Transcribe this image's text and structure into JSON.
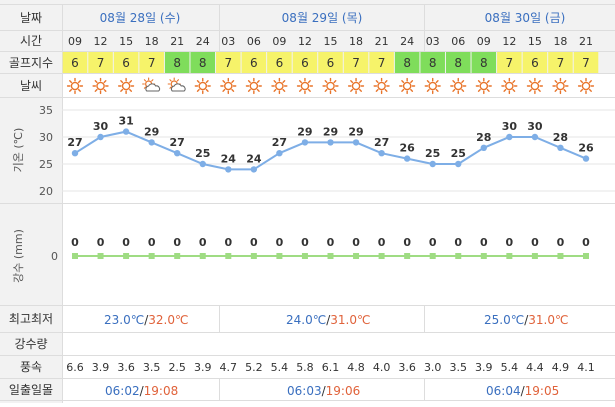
{
  "row_labels": {
    "date": "날짜",
    "time": "시간",
    "golf_index": "골프지수",
    "weather": "날씨",
    "temp_axis": "기온 (℃)",
    "rain_axis": "강수 (mm)",
    "minmax": "최고최저",
    "precip": "강수량",
    "wind": "풍속",
    "sun": "일출일몰"
  },
  "days": [
    {
      "label": "08월 28일 (수)",
      "min": "23.0℃",
      "max": "32.0℃",
      "sunrise": "06:02",
      "sunset": "19:08"
    },
    {
      "label": "08월 29일 (목)",
      "min": "24.0℃",
      "max": "31.0℃",
      "sunrise": "06:03",
      "sunset": "19:06"
    },
    {
      "label": "08월 30일 (금)",
      "min": "25.0℃",
      "max": "31.0℃",
      "sunrise": "06:04",
      "sunset": "19:05"
    }
  ],
  "separators": {
    "minmax": "/",
    "sun": "/"
  },
  "hours": [
    "09",
    "12",
    "15",
    "18",
    "21",
    "24",
    "03",
    "06",
    "09",
    "12",
    "15",
    "18",
    "21",
    "24",
    "03",
    "06",
    "09",
    "12",
    "15",
    "18",
    "21"
  ],
  "golf_index": [
    "6",
    "7",
    "6",
    "7",
    "8",
    "8",
    "7",
    "6",
    "6",
    "6",
    "6",
    "7",
    "7",
    "8",
    "8",
    "8",
    "8",
    "7",
    "6",
    "7",
    "7"
  ],
  "weather_icons": [
    "sun-icon",
    "sun-icon",
    "sun-icon",
    "partly-cloudy-icon",
    "partly-cloudy-icon",
    "sun-icon",
    "sun-icon",
    "sun-icon",
    "sun-icon",
    "sun-icon",
    "sun-icon",
    "sun-icon",
    "sun-icon",
    "sun-icon",
    "sun-icon",
    "sun-icon",
    "sun-icon",
    "sun-icon",
    "sun-icon",
    "sun-icon",
    "sun-icon"
  ],
  "wind": [
    "6.6",
    "3.9",
    "3.6",
    "3.5",
    "2.5",
    "3.9",
    "4.7",
    "5.2",
    "5.4",
    "5.8",
    "6.1",
    "4.8",
    "4.0",
    "3.6",
    "3.0",
    "3.5",
    "3.9",
    "5.4",
    "4.4",
    "4.9",
    "4.1"
  ],
  "colors": {
    "header_bg": "#f2f2f2",
    "accent_blue": "#3a6fbf",
    "golf_yellow": "#f6f36a",
    "golf_green": "#7fdd5b",
    "temp_line": "#7eaee6",
    "rain_line": "#9fdc83",
    "max_red": "#e0623a",
    "sun_icon": "#e8742a",
    "border": "#dddddd"
  },
  "chart_data": [
    {
      "type": "line",
      "title": "",
      "ylabel": "기온 (℃)",
      "x": [
        "09",
        "12",
        "15",
        "18",
        "21",
        "24",
        "03",
        "06",
        "09",
        "12",
        "15",
        "18",
        "21",
        "24",
        "03",
        "06",
        "09",
        "12",
        "15",
        "18",
        "21"
      ],
      "values": [
        27,
        30,
        31,
        29,
        27,
        25,
        24,
        24,
        27,
        29,
        29,
        29,
        27,
        26,
        25,
        25,
        28,
        30,
        30,
        28,
        26
      ],
      "yticks": [
        20,
        25,
        30,
        35
      ],
      "ylim": [
        20,
        35
      ],
      "grid": true
    },
    {
      "type": "line",
      "title": "",
      "ylabel": "강수 (mm)",
      "x": [
        "09",
        "12",
        "15",
        "18",
        "21",
        "24",
        "03",
        "06",
        "09",
        "12",
        "15",
        "18",
        "21",
        "24",
        "03",
        "06",
        "09",
        "12",
        "15",
        "18",
        "21"
      ],
      "values": [
        0,
        0,
        0,
        0,
        0,
        0,
        0,
        0,
        0,
        0,
        0,
        0,
        0,
        0,
        0,
        0,
        0,
        0,
        0,
        0,
        0
      ],
      "yticks": [
        0
      ],
      "ylim": [
        0,
        1
      ],
      "grid": false
    }
  ]
}
